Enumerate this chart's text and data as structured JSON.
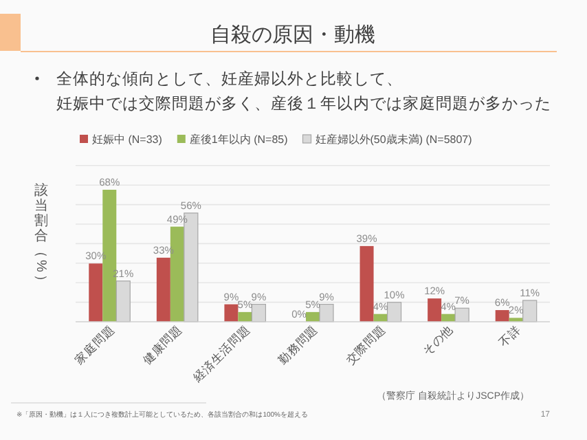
{
  "chart_data": {
    "type": "bar",
    "title": "自殺の原因・動機",
    "subtitle": "全体的な傾向として、妊産婦以外と比較して、妊娠中では交際問題が多く、産後１年以内では家庭問題が多かった",
    "ylabel": "該当割合（%）",
    "categories": [
      "家庭問題",
      "健康問題",
      "経済生活問題",
      "勤務問題",
      "交際問題",
      "その他",
      "不詳"
    ],
    "series": [
      {
        "name": "妊娠中 (N=33)",
        "color": "#c0504d",
        "values": [
          30,
          33,
          9,
          0,
          39,
          12,
          6
        ],
        "value_labels": [
          "30%",
          "33%",
          "9%",
          "0%",
          "39%",
          "12%",
          "6%"
        ]
      },
      {
        "name": "産後1年以内 (N=85)",
        "color": "#9bbb59",
        "values": [
          68,
          49,
          5,
          5,
          4,
          4,
          2
        ],
        "value_labels": [
          "68%",
          "49%",
          "5%",
          "5%",
          "4%",
          "4%",
          "2%"
        ]
      },
      {
        "name": "妊産婦以外(50歳未満) (N=5807)",
        "color": "#d9d9d9",
        "values": [
          21,
          56,
          9,
          9,
          10,
          7,
          11
        ],
        "value_labels": [
          "21%",
          "56%",
          "9%",
          "9%",
          "10%",
          "7%",
          "11%"
        ]
      }
    ],
    "grid": "y",
    "legend": "top",
    "annotations": [
      "（警察庁 自殺統計よりJSCP作成）",
      "※「原因・動機」は１人につき複数計上可能としているため、各該当割合の和は100%を超える",
      "17"
    ]
  }
}
